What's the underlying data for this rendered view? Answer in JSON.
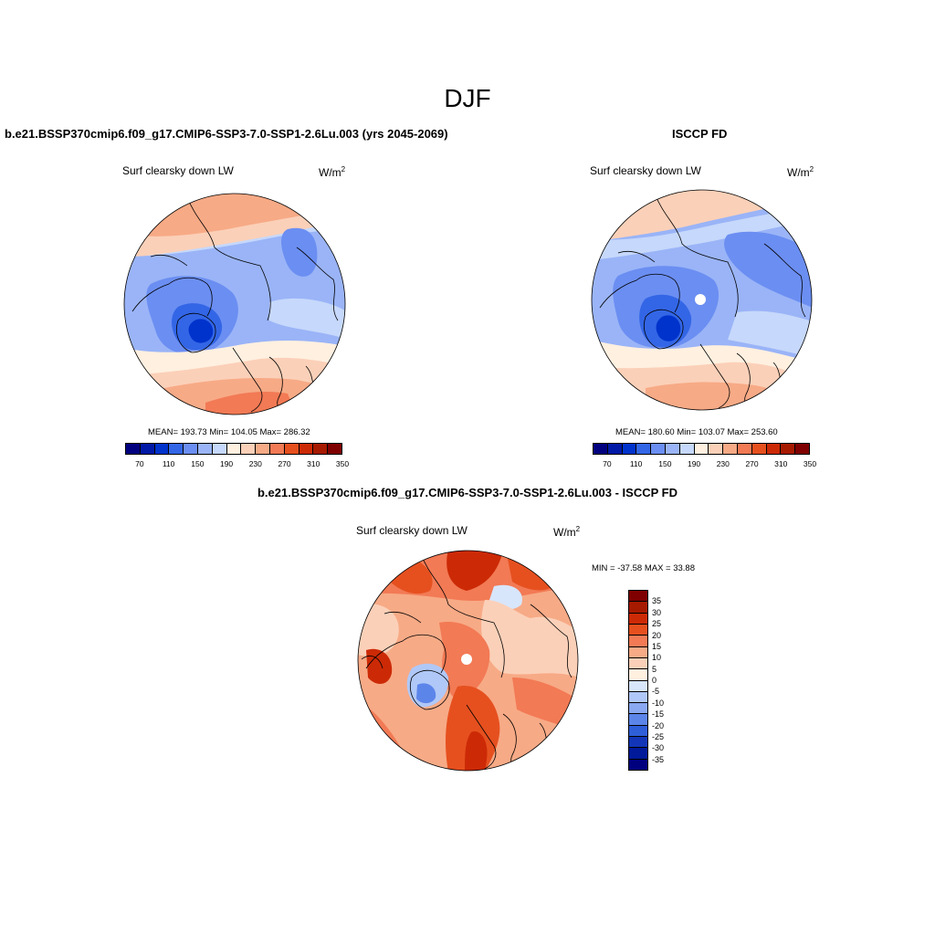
{
  "figure": {
    "title": "DJF"
  },
  "panels": {
    "model": {
      "title": "b.e21.BSSP370cmip6.f09_g17.CMIP6-SSP3-7.0-SSP1-2.6Lu.003 (yrs 2045-2069)",
      "variable": "Surf clearsky down LW",
      "units_base": "W/m",
      "units_exp": "2",
      "stats": "MEAN= 193.73  Min= 104.05  Max= 286.32"
    },
    "obs": {
      "title": "ISCCP FD",
      "variable": "Surf clearsky down LW",
      "units_base": "W/m",
      "units_exp": "2",
      "stats": "MEAN= 180.60  Min= 103.07  Max= 253.60"
    },
    "diff": {
      "title": "b.e21.BSSP370cmip6.f09_g17.CMIP6-SSP3-7.0-SSP1-2.6Lu.003 - ISCCP FD",
      "variable": "Surf clearsky down LW",
      "units_base": "W/m",
      "units_exp": "2",
      "stats": "MIN = -37.58 MAX =  33.88"
    }
  },
  "colorbars": {
    "absolute": {
      "colors": [
        "#00007f",
        "#0019a6",
        "#0033cc",
        "#3366e6",
        "#6b8ef2",
        "#9ab4f7",
        "#c6d8fb",
        "#fff0e0",
        "#fbd0b8",
        "#f7aa86",
        "#f27a55",
        "#e6501f",
        "#cc2a06",
        "#a61a00",
        "#7f0000"
      ],
      "tick_labels": [
        "70",
        "110",
        "150",
        "190",
        "230",
        "270",
        "310",
        "350"
      ]
    },
    "difference": {
      "colors": [
        "#7f0000",
        "#a61a00",
        "#cc2a06",
        "#e6501f",
        "#f27a55",
        "#f7aa86",
        "#fbd0b8",
        "#fff0e0",
        "#d8e6fb",
        "#b0c8f7",
        "#8aa8f2",
        "#5c85ea",
        "#2f5ed9",
        "#1336b8",
        "#001a99",
        "#00007f"
      ],
      "tick_labels": [
        "35",
        "30",
        "25",
        "20",
        "15",
        "10",
        "5",
        "0",
        "-5",
        "-10",
        "-15",
        "-20",
        "-25",
        "-30",
        "-35"
      ]
    }
  },
  "chart_data": [
    {
      "type": "heatmap",
      "projection": "north polar stereographic",
      "title": "b.e21.BSSP370cmip6.f09_g17.CMIP6-SSP3-7.0-SSP1-2.6Lu.003 (yrs 2045-2069)",
      "variable": "Surf clearsky down LW",
      "units": "W/m2",
      "mean": 193.73,
      "min": 104.05,
      "max": 286.32,
      "levels": [
        70,
        90,
        110,
        130,
        150,
        170,
        190,
        210,
        230,
        250,
        270,
        290,
        310,
        330,
        350
      ]
    },
    {
      "type": "heatmap",
      "projection": "north polar stereographic",
      "title": "ISCCP FD",
      "variable": "Surf clearsky down LW",
      "units": "W/m2",
      "mean": 180.6,
      "min": 103.07,
      "max": 253.6,
      "levels": [
        70,
        90,
        110,
        130,
        150,
        170,
        190,
        210,
        230,
        250,
        270,
        290,
        310,
        330,
        350
      ]
    },
    {
      "type": "heatmap",
      "projection": "north polar stereographic",
      "title": "b.e21.BSSP370cmip6.f09_g17.CMIP6-SSP3-7.0-SSP1-2.6Lu.003 - ISCCP FD",
      "variable": "Surf clearsky down LW",
      "units": "W/m2",
      "min": -37.58,
      "max": 33.88,
      "levels": [
        -35,
        -30,
        -25,
        -20,
        -15,
        -10,
        -5,
        0,
        5,
        10,
        15,
        20,
        25,
        30,
        35
      ]
    }
  ]
}
